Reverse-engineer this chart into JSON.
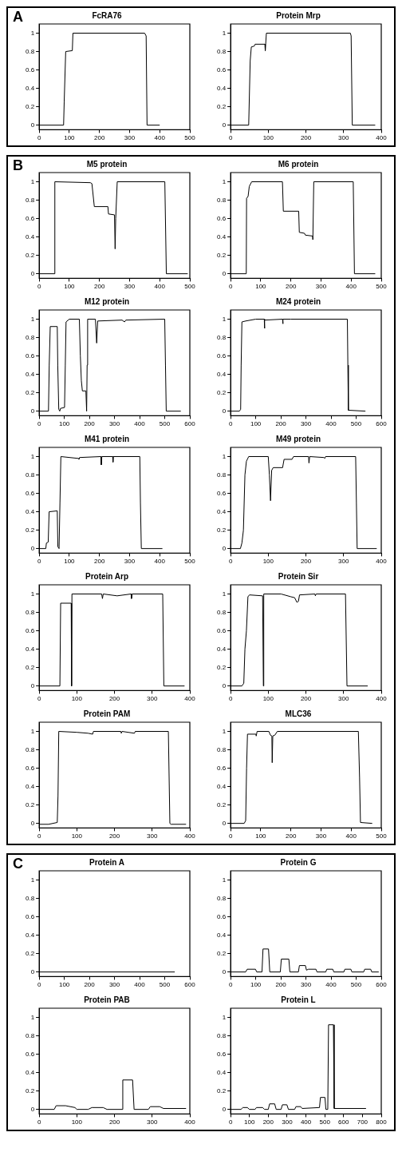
{
  "chart_data": [
    {
      "type": "line",
      "title": "FcRA76",
      "annotations": [
        "A"
      ],
      "color": "#000000",
      "xlim": [
        0,
        500
      ],
      "xticks": [
        0,
        100,
        200,
        300,
        400,
        500
      ],
      "ylim": [
        -0.05,
        1.1
      ],
      "yticks": [
        0,
        0.2,
        0.4,
        0.6,
        0.8,
        1
      ],
      "grid": false,
      "legend": false,
      "x": [
        0,
        81,
        83,
        88,
        110,
        112,
        350,
        355,
        358,
        400
      ],
      "values": [
        0,
        0,
        0.25,
        0.8,
        0.81,
        1,
        1,
        0.97,
        0,
        0
      ]
    },
    {
      "type": "line",
      "title": "Protein Mrp",
      "color": "#000000",
      "xlim": [
        0,
        400
      ],
      "xticks": [
        0,
        100,
        200,
        300,
        400
      ],
      "ylim": [
        -0.05,
        1.1
      ],
      "yticks": [
        0,
        0.2,
        0.4,
        0.6,
        0.8,
        1
      ],
      "grid": false,
      "legend": false,
      "x": [
        0,
        48,
        52,
        55,
        63,
        65,
        91,
        92,
        95,
        318,
        320,
        323,
        384
      ],
      "values": [
        0,
        0,
        0.7,
        0.85,
        0.86,
        0.88,
        0.88,
        0.81,
        1,
        1,
        0.97,
        0,
        0
      ]
    },
    {
      "type": "line",
      "title": "M5 protein",
      "annotations": [
        "B"
      ],
      "color": "#000000",
      "xlim": [
        0,
        500
      ],
      "xticks": [
        0,
        100,
        200,
        300,
        400,
        500
      ],
      "ylim": [
        -0.05,
        1.1
      ],
      "yticks": [
        0,
        0.2,
        0.4,
        0.6,
        0.8,
        1
      ],
      "grid": false,
      "legend": false,
      "x": [
        0,
        50,
        52,
        170,
        175,
        183,
        228,
        230,
        250,
        252,
        254,
        259,
        417,
        422,
        493
      ],
      "values": [
        0,
        0,
        1,
        0.99,
        0.98,
        0.73,
        0.73,
        0.65,
        0.64,
        0.27,
        0.6,
        1,
        1,
        0,
        0
      ]
    },
    {
      "type": "line",
      "title": "M6 protein",
      "color": "#000000",
      "xlim": [
        0,
        500
      ],
      "xticks": [
        0,
        100,
        200,
        300,
        400,
        500
      ],
      "ylim": [
        -0.05,
        1.1
      ],
      "yticks": [
        0,
        0.2,
        0.4,
        0.6,
        0.8,
        1
      ],
      "grid": false,
      "legend": false,
      "x": [
        0,
        52,
        53,
        58,
        62,
        70,
        172,
        175,
        226,
        228,
        245,
        248,
        272,
        273,
        276,
        407,
        411,
        480
      ],
      "values": [
        0,
        0,
        0.82,
        0.84,
        0.95,
        1,
        1,
        0.68,
        0.68,
        0.45,
        0.44,
        0.42,
        0.41,
        0.37,
        1,
        1,
        0,
        0
      ]
    },
    {
      "type": "line",
      "title": "M12 protein",
      "color": "#000000",
      "xlim": [
        0,
        600
      ],
      "xticks": [
        0,
        100,
        200,
        300,
        400,
        500,
        600
      ],
      "ylim": [
        -0.05,
        1.1
      ],
      "yticks": [
        0,
        0.2,
        0.4,
        0.6,
        0.8,
        1
      ],
      "grid": false,
      "legend": false,
      "x": [
        0,
        37,
        40,
        44,
        72,
        74,
        78,
        82,
        85,
        101,
        104,
        107,
        120,
        160,
        164,
        168,
        172,
        186,
        189,
        191,
        193,
        224,
        229,
        233,
        330,
        340,
        345,
        500,
        503,
        506,
        564
      ],
      "values": [
        0,
        0,
        0.5,
        0.92,
        0.92,
        0.5,
        0.02,
        0,
        0.03,
        0.04,
        0.5,
        0.97,
        1,
        1,
        0.6,
        0.33,
        0.22,
        0.22,
        0,
        0.5,
        1,
        1,
        0.74,
        0.98,
        0.99,
        0.97,
        0.99,
        1,
        0.5,
        0,
        0
      ]
    },
    {
      "type": "line",
      "title": "M24 protein",
      "color": "#000000",
      "xlim": [
        0,
        600
      ],
      "xticks": [
        0,
        100,
        200,
        300,
        400,
        500,
        600
      ],
      "ylim": [
        -0.05,
        1.1
      ],
      "yticks": [
        0,
        0.2,
        0.4,
        0.6,
        0.8,
        1
      ],
      "grid": false,
      "legend": false,
      "x": [
        0,
        35,
        40,
        42,
        45,
        60,
        100,
        134,
        135,
        136,
        207,
        208,
        209,
        240,
        465,
        467,
        469,
        537
      ],
      "values": [
        0,
        0,
        0.02,
        0.5,
        0.97,
        0.98,
        1,
        1,
        0.9,
        0.99,
        1,
        0.95,
        1,
        1,
        1,
        0.5,
        0.01,
        0
      ]
    },
    {
      "type": "line",
      "title": "M41 protein",
      "color": "#000000",
      "xlim": [
        0,
        500
      ],
      "xticks": [
        0,
        100,
        200,
        300,
        400,
        500
      ],
      "ylim": [
        -0.05,
        1.1
      ],
      "yticks": [
        0,
        0.2,
        0.4,
        0.6,
        0.8,
        1
      ],
      "grid": false,
      "legend": false,
      "x": [
        0,
        22,
        24,
        30,
        33,
        60,
        62,
        66,
        69,
        72,
        130,
        132,
        134,
        205,
        206,
        208,
        244,
        245,
        246,
        334,
        336,
        339,
        409
      ],
      "values": [
        0,
        0,
        0.06,
        0.07,
        0.4,
        0.41,
        0.02,
        0,
        0.5,
        1,
        0.98,
        0.97,
        0.99,
        1,
        0.91,
        1,
        1,
        0.94,
        1,
        1,
        0.5,
        0,
        0
      ]
    },
    {
      "type": "line",
      "title": "M49 protein",
      "color": "#000000",
      "xlim": [
        0,
        400
      ],
      "xticks": [
        0,
        100,
        200,
        300,
        400
      ],
      "ylim": [
        -0.05,
        1.1
      ],
      "yticks": [
        0,
        0.2,
        0.4,
        0.6,
        0.8,
        1
      ],
      "grid": false,
      "legend": false,
      "x": [
        0,
        26,
        30,
        34,
        38,
        42,
        48,
        100,
        103,
        106,
        109,
        113,
        138,
        142,
        163,
        167,
        207,
        208,
        210,
        248,
        250,
        252,
        332,
        334,
        336,
        388
      ],
      "values": [
        0,
        0,
        0.06,
        0.2,
        0.8,
        0.95,
        1,
        1,
        0.8,
        0.52,
        0.85,
        0.88,
        0.88,
        0.97,
        0.97,
        1,
        1,
        0.93,
        1,
        0.99,
        0.98,
        1,
        1,
        0.5,
        0,
        0
      ]
    },
    {
      "type": "line",
      "title": "Protein Arp",
      "color": "#000000",
      "xlim": [
        0,
        400
      ],
      "xticks": [
        0,
        100,
        200,
        300,
        400
      ],
      "ylim": [
        -0.05,
        1.1
      ],
      "yticks": [
        0,
        0.2,
        0.4,
        0.6,
        0.8,
        1
      ],
      "grid": false,
      "legend": false,
      "x": [
        0,
        55,
        57,
        85,
        86,
        87,
        166,
        168,
        170,
        207,
        244,
        245,
        247,
        328,
        331,
        386
      ],
      "values": [
        0,
        0,
        0.9,
        0.9,
        0,
        1,
        1,
        0.95,
        1,
        0.98,
        1,
        0.95,
        1,
        1,
        0,
        0
      ]
    },
    {
      "type": "line",
      "title": "Protein Sir",
      "color": "#000000",
      "xlim": [
        0,
        400
      ],
      "xticks": [
        0,
        100,
        200,
        300,
        400
      ],
      "ylim": [
        -0.05,
        1.1
      ],
      "yticks": [
        0,
        0.2,
        0.4,
        0.6,
        0.8,
        1
      ],
      "grid": false,
      "legend": false,
      "x": [
        0,
        30,
        35,
        38,
        42,
        46,
        50,
        85,
        87,
        88,
        134,
        160,
        170,
        176,
        180,
        183,
        224,
        225,
        227,
        305,
        309,
        364
      ],
      "values": [
        0,
        0,
        0.03,
        0.4,
        0.6,
        0.97,
        0.99,
        0.98,
        0,
        1,
        1,
        0.97,
        0.96,
        0.91,
        0.92,
        0.99,
        1,
        0.98,
        1,
        1,
        0,
        0
      ]
    },
    {
      "type": "line",
      "title": "Protein PAM",
      "color": "#000000",
      "xlim": [
        0,
        400
      ],
      "xticks": [
        0,
        100,
        200,
        300,
        400
      ],
      "ylim": [
        -0.05,
        1.1
      ],
      "yticks": [
        0,
        0.2,
        0.4,
        0.6,
        0.8,
        1
      ],
      "grid": false,
      "legend": false,
      "x": [
        0,
        25,
        48,
        50,
        52,
        100,
        130,
        142,
        144,
        217,
        218,
        220,
        253,
        255,
        343,
        347,
        350,
        390
      ],
      "values": [
        -0.01,
        -0.01,
        0.01,
        0.3,
        1,
        0.99,
        0.98,
        0.97,
        1,
        1,
        0.98,
        1,
        0.98,
        1,
        1,
        0,
        -0.01,
        -0.01
      ]
    },
    {
      "type": "line",
      "title": "MLC36",
      "color": "#000000",
      "xlim": [
        0,
        500
      ],
      "xticks": [
        0,
        100,
        200,
        300,
        400,
        500
      ],
      "ylim": [
        -0.05,
        1.1
      ],
      "yticks": [
        0,
        0.2,
        0.4,
        0.6,
        0.8,
        1
      ],
      "grid": false,
      "legend": false,
      "x": [
        0,
        45,
        50,
        53,
        56,
        84,
        85,
        88,
        127,
        132,
        137,
        138,
        140,
        147,
        155,
        424,
        428,
        431,
        470
      ],
      "values": [
        0,
        0,
        0.03,
        0.6,
        0.97,
        0.97,
        0.95,
        1,
        1,
        0.96,
        0.95,
        0.66,
        0.95,
        0.96,
        1,
        1,
        0.5,
        0.01,
        0
      ]
    },
    {
      "type": "line",
      "title": "Protein A",
      "annotations": [
        "C"
      ],
      "color": "#000000",
      "xlim": [
        0,
        600
      ],
      "xticks": [
        0,
        100,
        200,
        300,
        400,
        500,
        600
      ],
      "ylim": [
        -0.05,
        1.1
      ],
      "yticks": [
        0,
        0.2,
        0.4,
        0.6,
        0.8,
        1
      ],
      "grid": false,
      "legend": false,
      "x": [
        0,
        540
      ],
      "values": [
        0,
        0
      ]
    },
    {
      "type": "line",
      "title": "Protein G",
      "color": "#000000",
      "xlim": [
        0,
        600
      ],
      "xticks": [
        0,
        100,
        200,
        300,
        400,
        500,
        600
      ],
      "ylim": [
        -0.05,
        1.1
      ],
      "yticks": [
        0,
        0.2,
        0.4,
        0.6,
        0.8,
        1
      ],
      "grid": false,
      "legend": false,
      "x": [
        0,
        60,
        66,
        99,
        104,
        125,
        129,
        151,
        156,
        198,
        202,
        232,
        236,
        270,
        274,
        298,
        302,
        310,
        340,
        344,
        379,
        383,
        407,
        411,
        451,
        455,
        479,
        483,
        530,
        534,
        558,
        562,
        590
      ],
      "values": [
        0,
        0,
        0.03,
        0.03,
        0,
        0,
        0.25,
        0.25,
        0,
        0,
        0.14,
        0.14,
        0,
        0,
        0.07,
        0.07,
        0.02,
        0.03,
        0.03,
        0,
        0,
        0.03,
        0.03,
        0,
        0,
        0.03,
        0.03,
        0,
        0,
        0.03,
        0.03,
        0,
        0
      ]
    },
    {
      "type": "line",
      "title": "Protein PAB",
      "color": "#000000",
      "xlim": [
        0,
        400
      ],
      "xticks": [
        0,
        100,
        200,
        300,
        400
      ],
      "ylim": [
        -0.05,
        1.1
      ],
      "yticks": [
        0,
        0.2,
        0.4,
        0.6,
        0.8,
        1
      ],
      "grid": false,
      "legend": false,
      "x": [
        0,
        40,
        45,
        70,
        95,
        100,
        130,
        140,
        170,
        180,
        220,
        222,
        248,
        252,
        290,
        295,
        320,
        330,
        390
      ],
      "values": [
        0,
        0,
        0.04,
        0.04,
        0.02,
        0,
        0,
        0.02,
        0.02,
        0,
        0,
        0.32,
        0.32,
        0,
        0,
        0.03,
        0.03,
        0.01,
        0.01
      ]
    },
    {
      "type": "line",
      "title": "Protein L",
      "color": "#000000",
      "xlim": [
        0,
        800
      ],
      "xticks": [
        0,
        100,
        200,
        300,
        400,
        500,
        600,
        700,
        800
      ],
      "ylim": [
        -0.05,
        1.1
      ],
      "yticks": [
        0,
        0.2,
        0.4,
        0.6,
        0.8,
        1
      ],
      "grid": false,
      "legend": false,
      "x": [
        0,
        55,
        65,
        89,
        100,
        130,
        137,
        170,
        180,
        200,
        207,
        234,
        242,
        268,
        275,
        299,
        307,
        340,
        347,
        372,
        380,
        472,
        477,
        501,
        506,
        516,
        520,
        546,
        550,
        719
      ],
      "values": [
        0,
        0,
        0.02,
        0.02,
        0,
        0,
        0.02,
        0.02,
        0,
        0,
        0.06,
        0.06,
        0,
        0,
        0.05,
        0.05,
        0,
        0,
        0.03,
        0.03,
        0.01,
        0.02,
        0.13,
        0.13,
        0,
        0,
        0.92,
        0.92,
        0.01,
        0.01
      ]
    }
  ]
}
